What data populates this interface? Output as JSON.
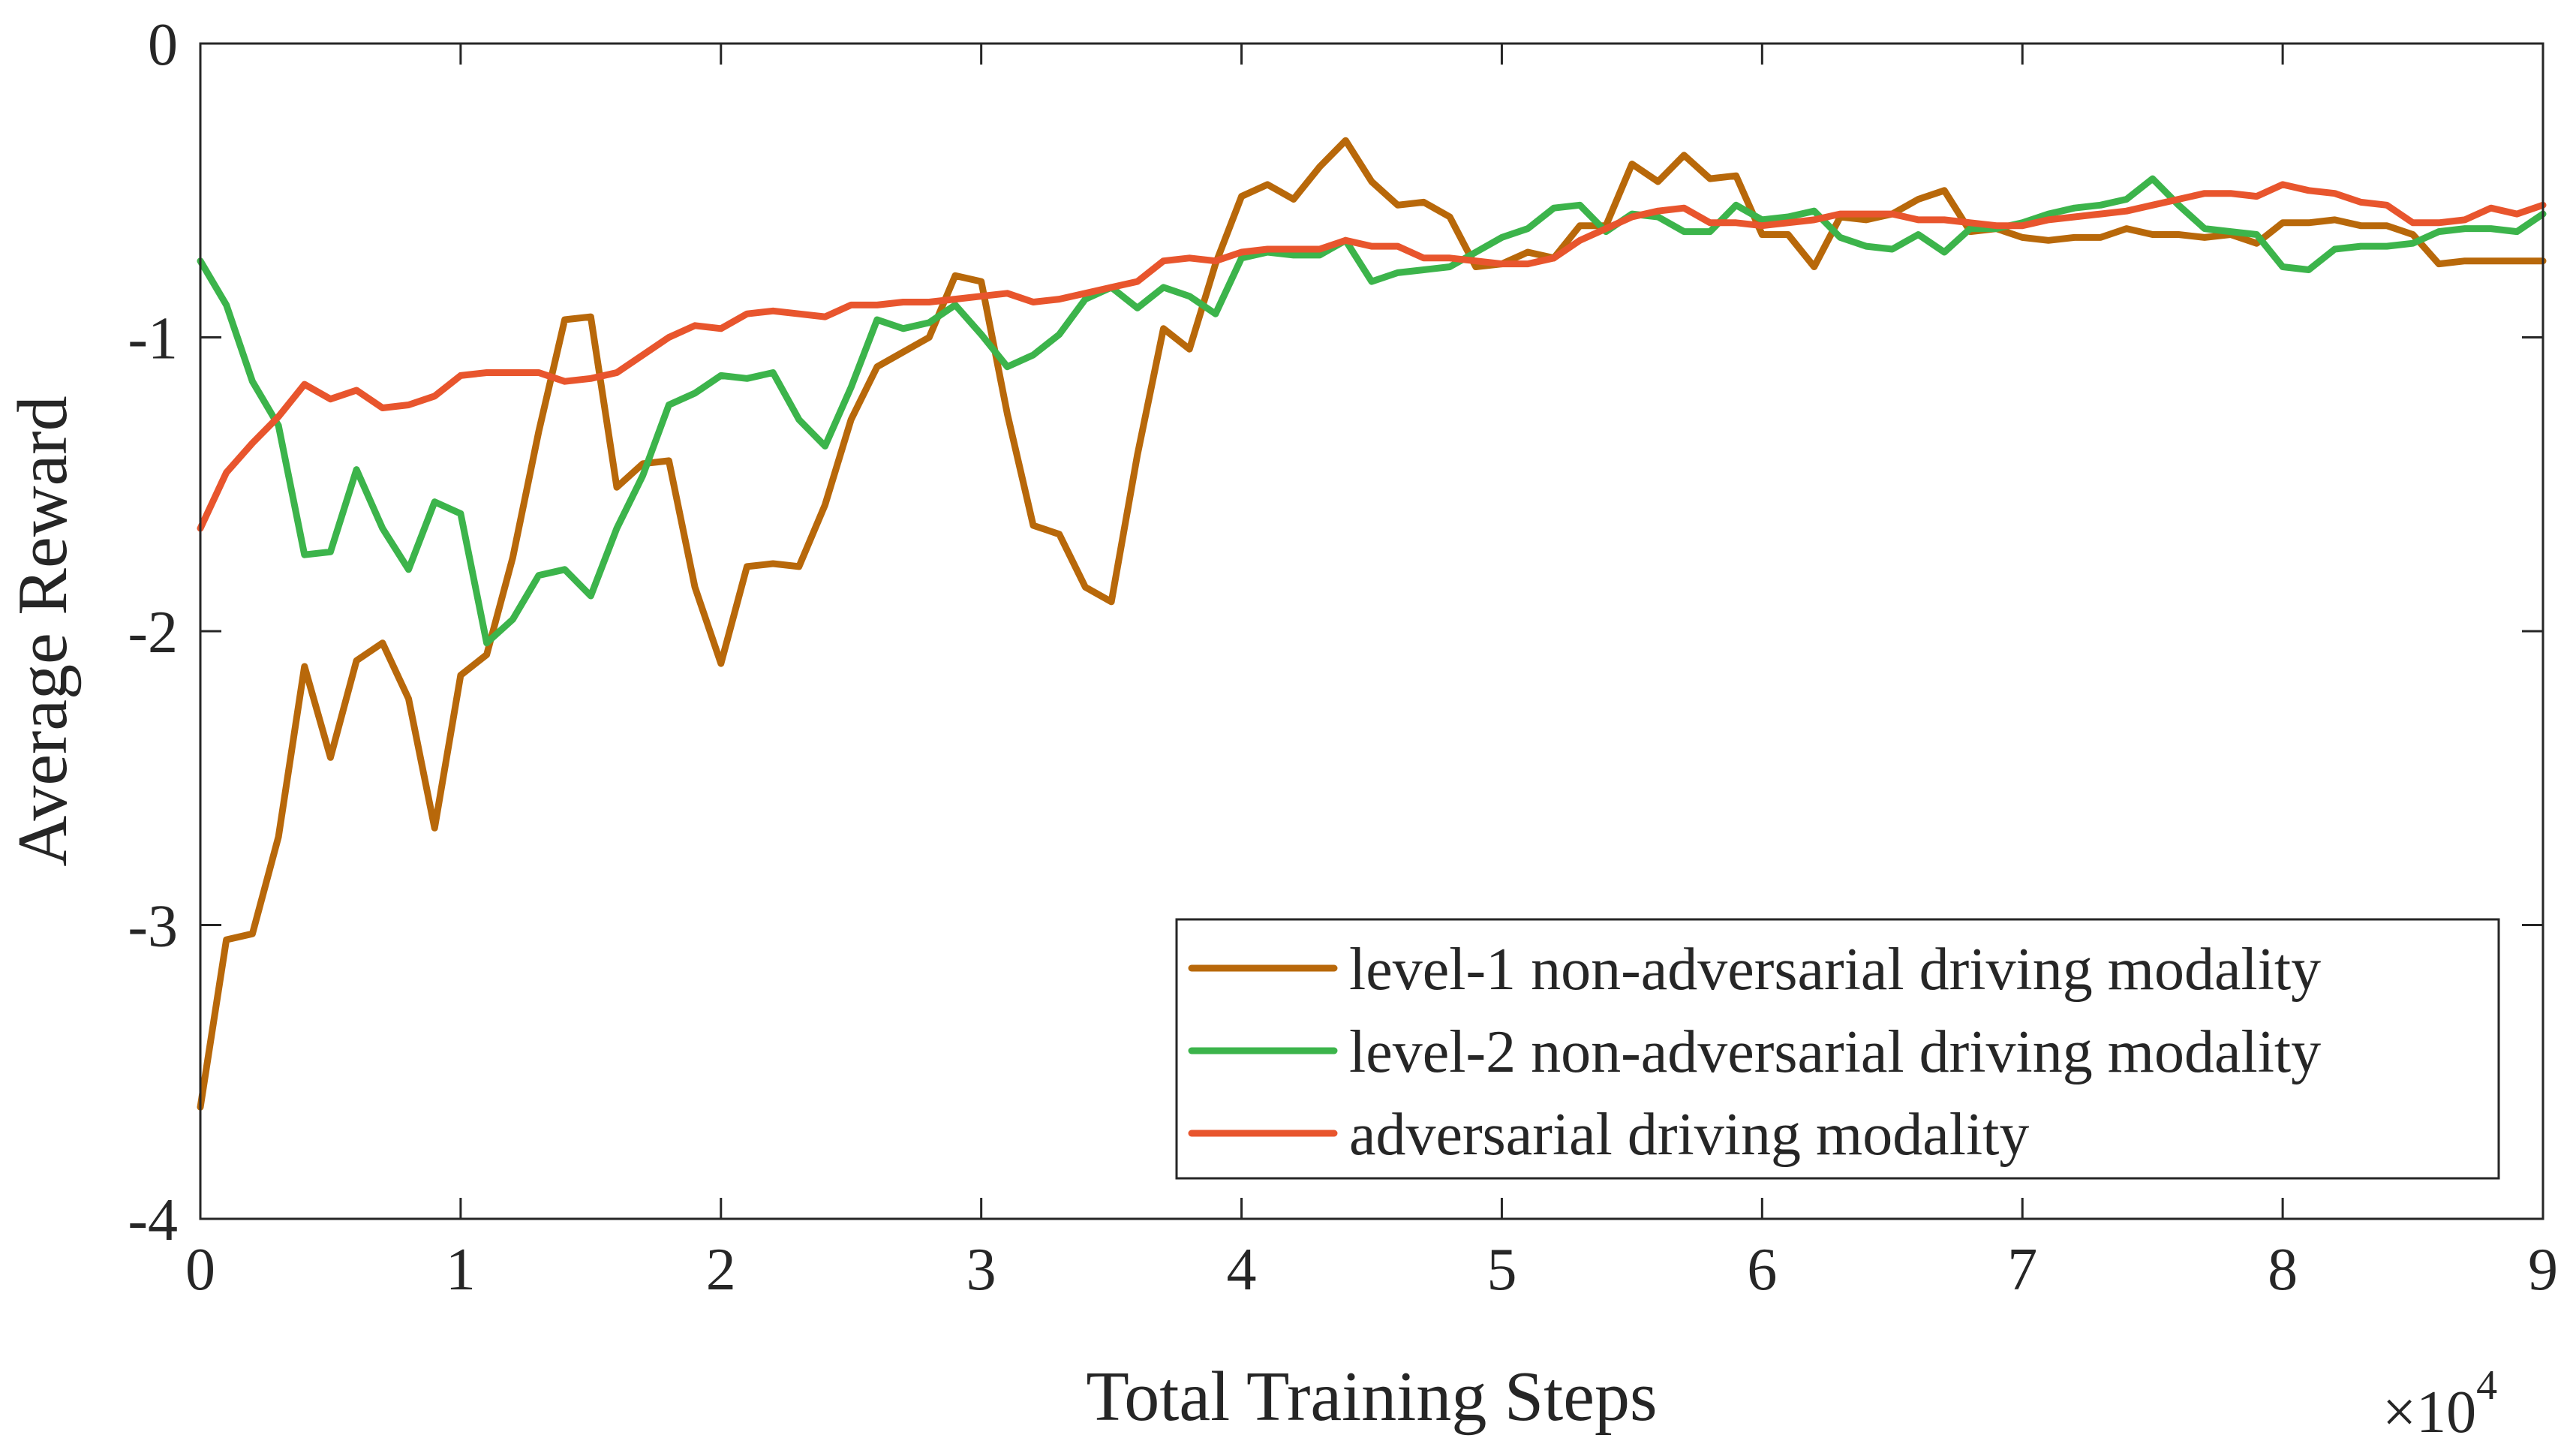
{
  "chart_data": {
    "type": "line",
    "xlabel": "Total Training Steps",
    "ylabel": "Average Reward",
    "x_exponent_label": "×10⁴",
    "x_exponent_base": "×10",
    "x_exponent_power": "4",
    "xlim": [
      0,
      9
    ],
    "ylim": [
      -4,
      0
    ],
    "xticks": [
      0,
      1,
      2,
      3,
      4,
      5,
      6,
      7,
      8,
      9
    ],
    "xtick_labels": [
      "0",
      "1",
      "2",
      "3",
      "4",
      "5",
      "6",
      "7",
      "8",
      "9"
    ],
    "yticks": [
      0,
      -1,
      -2,
      -3,
      -4
    ],
    "ytick_labels": [
      "0",
      "-1",
      "-2",
      "-3",
      "-4"
    ],
    "grid": false,
    "legend_position": "bottom-right",
    "x": [
      0.0,
      0.1,
      0.2,
      0.3,
      0.4,
      0.5,
      0.6,
      0.7,
      0.8,
      0.9,
      1.0,
      1.1,
      1.2,
      1.3,
      1.4,
      1.5,
      1.6,
      1.7,
      1.8,
      1.9,
      2.0,
      2.1,
      2.2,
      2.3,
      2.4,
      2.5,
      2.6,
      2.7,
      2.8,
      2.9,
      3.0,
      3.1,
      3.2,
      3.3,
      3.4,
      3.5,
      3.6,
      3.7,
      3.8,
      3.9,
      4.0,
      4.1,
      4.2,
      4.3,
      4.4,
      4.5,
      4.6,
      4.7,
      4.8,
      4.9,
      5.0,
      5.1,
      5.2,
      5.3,
      5.4,
      5.5,
      5.6,
      5.7,
      5.8,
      5.9,
      6.0,
      6.1,
      6.2,
      6.3,
      6.4,
      6.5,
      6.6,
      6.7,
      6.8,
      6.9,
      7.0,
      7.1,
      7.2,
      7.3,
      7.4,
      7.5,
      7.6,
      7.7,
      7.8,
      7.9,
      8.0,
      8.1,
      8.2,
      8.3,
      8.4,
      8.5,
      8.6,
      8.7,
      8.8,
      8.9,
      9.0
    ],
    "series": [
      {
        "name": "level-1 non-adversarial driving modality",
        "color": "#B8680A",
        "values": [
          -3.62,
          -3.05,
          -3.03,
          -2.7,
          -2.12,
          -2.43,
          -2.1,
          -2.04,
          -2.23,
          -2.67,
          -2.15,
          -2.08,
          -1.75,
          -1.32,
          -0.94,
          -0.93,
          -1.51,
          -1.43,
          -1.42,
          -1.85,
          -2.11,
          -1.78,
          -1.77,
          -1.78,
          -1.57,
          -1.28,
          -1.1,
          -1.05,
          -1.0,
          -0.79,
          -0.81,
          -1.26,
          -1.64,
          -1.67,
          -1.85,
          -1.9,
          -1.4,
          -0.97,
          -1.04,
          -0.75,
          -0.52,
          -0.48,
          -0.53,
          -0.42,
          -0.33,
          -0.47,
          -0.55,
          -0.54,
          -0.59,
          -0.76,
          -0.75,
          -0.71,
          -0.73,
          -0.62,
          -0.62,
          -0.41,
          -0.47,
          -0.38,
          -0.46,
          -0.45,
          -0.65,
          -0.65,
          -0.76,
          -0.59,
          -0.6,
          -0.58,
          -0.53,
          -0.5,
          -0.64,
          -0.63,
          -0.66,
          -0.67,
          -0.66,
          -0.66,
          -0.63,
          -0.65,
          -0.65,
          -0.66,
          -0.65,
          -0.68,
          -0.61,
          -0.61,
          -0.6,
          -0.62,
          -0.62,
          -0.65,
          -0.75,
          -0.74,
          -0.74,
          -0.74,
          -0.74
        ]
      },
      {
        "name": "level-2 non-adversarial driving modality",
        "color": "#3CB44B",
        "values": [
          -0.74,
          -0.89,
          -1.15,
          -1.3,
          -1.74,
          -1.73,
          -1.45,
          -1.65,
          -1.79,
          -1.56,
          -1.6,
          -2.04,
          -1.96,
          -1.81,
          -1.79,
          -1.88,
          -1.65,
          -1.47,
          -1.23,
          -1.19,
          -1.13,
          -1.14,
          -1.12,
          -1.28,
          -1.37,
          -1.17,
          -0.94,
          -0.97,
          -0.95,
          -0.89,
          -0.99,
          -1.1,
          -1.06,
          -0.99,
          -0.87,
          -0.83,
          -0.9,
          -0.83,
          -0.86,
          -0.92,
          -0.73,
          -0.71,
          -0.72,
          -0.72,
          -0.67,
          -0.81,
          -0.78,
          -0.77,
          -0.76,
          -0.71,
          -0.66,
          -0.63,
          -0.56,
          -0.55,
          -0.64,
          -0.58,
          -0.59,
          -0.64,
          -0.64,
          -0.55,
          -0.6,
          -0.59,
          -0.57,
          -0.66,
          -0.69,
          -0.7,
          -0.65,
          -0.71,
          -0.63,
          -0.63,
          -0.61,
          -0.58,
          -0.56,
          -0.55,
          -0.53,
          -0.46,
          -0.55,
          -0.63,
          -0.64,
          -0.65,
          -0.76,
          -0.77,
          -0.7,
          -0.69,
          -0.69,
          -0.68,
          -0.64,
          -0.63,
          -0.63,
          -0.64,
          -0.58
        ]
      },
      {
        "name": "adversarial driving modality",
        "color": "#E8552D",
        "values": [
          -1.65,
          -1.46,
          -1.36,
          -1.27,
          -1.16,
          -1.21,
          -1.18,
          -1.24,
          -1.23,
          -1.2,
          -1.13,
          -1.12,
          -1.12,
          -1.12,
          -1.15,
          -1.14,
          -1.12,
          -1.06,
          -1.0,
          -0.96,
          -0.97,
          -0.92,
          -0.91,
          -0.92,
          -0.93,
          -0.89,
          -0.89,
          -0.88,
          -0.88,
          -0.87,
          -0.86,
          -0.85,
          -0.88,
          -0.87,
          -0.85,
          -0.83,
          -0.81,
          -0.74,
          -0.73,
          -0.74,
          -0.71,
          -0.7,
          -0.7,
          -0.7,
          -0.67,
          -0.69,
          -0.69,
          -0.73,
          -0.73,
          -0.74,
          -0.75,
          -0.75,
          -0.73,
          -0.67,
          -0.63,
          -0.59,
          -0.57,
          -0.56,
          -0.61,
          -0.61,
          -0.62,
          -0.61,
          -0.6,
          -0.58,
          -0.58,
          -0.58,
          -0.6,
          -0.6,
          -0.61,
          -0.62,
          -0.62,
          -0.6,
          -0.59,
          -0.58,
          -0.57,
          -0.55,
          -0.53,
          -0.51,
          -0.51,
          -0.52,
          -0.48,
          -0.5,
          -0.51,
          -0.54,
          -0.55,
          -0.61,
          -0.61,
          -0.6,
          -0.56,
          -0.58,
          -0.55
        ]
      }
    ]
  }
}
